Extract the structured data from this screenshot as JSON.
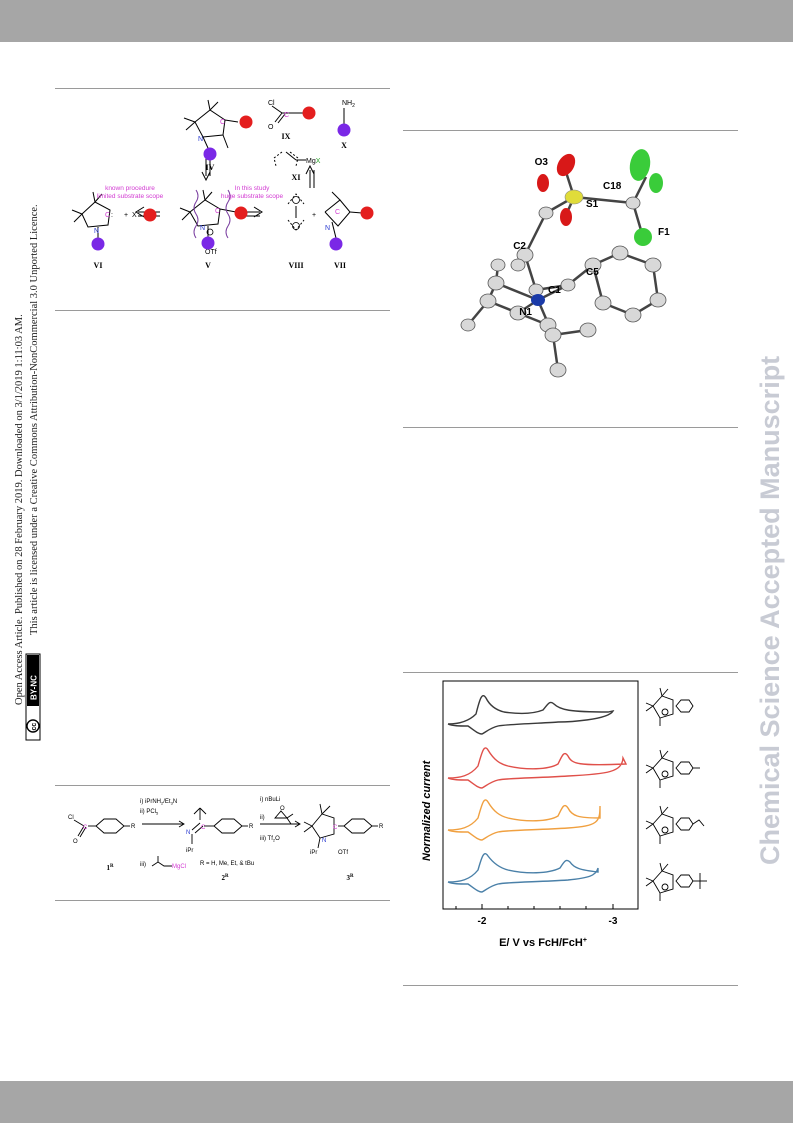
{
  "watermark": "Chemical Science Accepted Manuscript",
  "license": {
    "line1": "Open Access Article. Published on 28 February 2019. Downloaded on 3/1/2019 1:11:03 AM.",
    "line2": "This article is licensed under a Creative Commons Attribution-NonCommercial 3.0 Unported Licence.",
    "cc_badge": "cc",
    "by_nc": "BY-NC"
  },
  "scheme1": {
    "known_note_1": "known procedure",
    "known_note_2": "limited substrate scope",
    "study_note_1": "In this study",
    "study_note_2": "huge substrate scope",
    "labels": {
      "IV": "IV",
      "V": "V",
      "VI": "VI",
      "VII": "VII",
      "VIII": "VIII",
      "IX": "IX",
      "X": "X",
      "XI": "XI"
    },
    "atoms": {
      "C": "C",
      "N": "N",
      "X": "X",
      "Cl": "Cl",
      "O": "O",
      "NH2": "NH",
      "sub2": "2",
      "Mg": "Mg",
      "MgX_x": "X",
      "OTf": "OTf",
      "plus": "+",
      "colon": ":"
    }
  },
  "crystal": {
    "labels": {
      "O3": "O3",
      "S1": "S1",
      "C18": "C18",
      "F1": "F1",
      "C2": "C2",
      "C5": "C5",
      "C1": "C1",
      "N1": "N1"
    }
  },
  "scheme2": {
    "step1": "i) iPrNH",
    "step1_sub": "2",
    "step1_tail": "/Et",
    "step1_sub2": "3",
    "step1_end": "N",
    "step2": "ii) PCl",
    "step2_sub": "5",
    "step3": "iii)",
    "step3_reagent": "MgCl",
    "step4": "i) nBuLi",
    "step5": "ii)",
    "step6": "iii) Tf",
    "step6_sub": "2",
    "step6_end": "O",
    "r_note": "R = H, Me, Et, & tBu",
    "compound1": "1",
    "compound2": "2",
    "compound3": "3",
    "sup": "R",
    "atoms": {
      "Cl": "Cl",
      "O": "O",
      "R": "R",
      "C": "C",
      "N": "N",
      "iPr": "iPr",
      "OTf": "OTf"
    }
  },
  "chart_data": {
    "type": "line",
    "ylabel": "Normalized current",
    "xlabel": "E/ V vs FcH/FcH",
    "xlabel_sup": "+",
    "xticks": [
      "-2",
      "-3"
    ],
    "series": [
      {
        "color": "#3a3a3a"
      },
      {
        "color": "#e0504a"
      },
      {
        "color": "#f0a040"
      },
      {
        "color": "#4a80a8"
      }
    ]
  }
}
